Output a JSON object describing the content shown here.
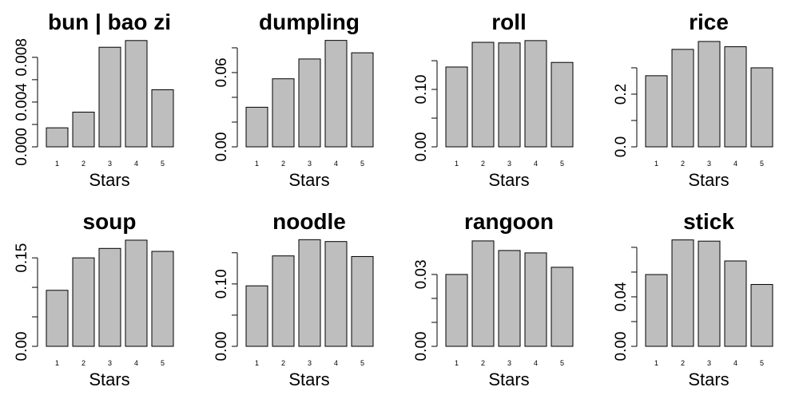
{
  "chart_data": [
    {
      "type": "bar",
      "title": "bun | bao zi",
      "xlabel": "Stars",
      "color": "#bebebe",
      "categories": [
        "1",
        "2",
        "3",
        "4",
        "5"
      ],
      "values": [
        0.0017,
        0.0031,
        0.0089,
        0.0095,
        0.0051
      ],
      "ylim": [
        0,
        0.0097
      ],
      "yticks": [
        {
          "value": 0,
          "label": "0.000"
        },
        {
          "value": 0.002,
          "label": null
        },
        {
          "value": 0.004,
          "label": "0.004"
        },
        {
          "value": 0.006,
          "label": null
        },
        {
          "value": 0.008,
          "label": "0.008"
        }
      ]
    },
    {
      "type": "bar",
      "title": "dumpling",
      "xlabel": "Stars",
      "color": "#bebebe",
      "categories": [
        "1",
        "2",
        "3",
        "4",
        "5"
      ],
      "values": [
        0.032,
        0.055,
        0.071,
        0.086,
        0.076
      ],
      "ylim": [
        0,
        0.0877
      ],
      "yticks": [
        {
          "value": 0,
          "label": "0.00"
        },
        {
          "value": 0.02,
          "label": null
        },
        {
          "value": 0.04,
          "label": null
        },
        {
          "value": 0.06,
          "label": "0.06"
        },
        {
          "value": 0.08,
          "label": null
        }
      ]
    },
    {
      "type": "bar",
      "title": "roll",
      "xlabel": "Stars",
      "color": "#bebebe",
      "categories": [
        "1",
        "2",
        "3",
        "4",
        "5"
      ],
      "values": [
        0.139,
        0.182,
        0.181,
        0.185,
        0.147
      ],
      "ylim": [
        0,
        0.189
      ],
      "yticks": [
        {
          "value": 0,
          "label": "0.00"
        },
        {
          "value": 0.05,
          "label": null
        },
        {
          "value": 0.1,
          "label": "0.10"
        },
        {
          "value": 0.15,
          "label": null
        }
      ]
    },
    {
      "type": "bar",
      "title": "rice",
      "xlabel": "Stars",
      "color": "#bebebe",
      "categories": [
        "1",
        "2",
        "3",
        "4",
        "5"
      ],
      "values": [
        0.27,
        0.37,
        0.4,
        0.38,
        0.3
      ],
      "ylim": [
        0,
        0.412
      ],
      "yticks": [
        {
          "value": 0,
          "label": "0.0"
        },
        {
          "value": 0.1,
          "label": null
        },
        {
          "value": 0.2,
          "label": "0.2"
        },
        {
          "value": 0.3,
          "label": null
        }
      ]
    },
    {
      "type": "bar",
      "title": "soup",
      "xlabel": "Stars",
      "color": "#bebebe",
      "categories": [
        "1",
        "2",
        "3",
        "4",
        "5"
      ],
      "values": [
        0.095,
        0.15,
        0.166,
        0.18,
        0.161
      ],
      "ylim": [
        0,
        0.184
      ],
      "yticks": [
        {
          "value": 0,
          "label": "0.00"
        },
        {
          "value": 0.05,
          "label": null
        },
        {
          "value": 0.1,
          "label": null
        },
        {
          "value": 0.15,
          "label": "0.15"
        }
      ]
    },
    {
      "type": "bar",
      "title": "noodle",
      "xlabel": "Stars",
      "color": "#bebebe",
      "categories": [
        "1",
        "2",
        "3",
        "4",
        "5"
      ],
      "values": [
        0.097,
        0.145,
        0.171,
        0.168,
        0.144
      ],
      "ylim": [
        0,
        0.174
      ],
      "yticks": [
        {
          "value": 0,
          "label": "0.00"
        },
        {
          "value": 0.05,
          "label": null
        },
        {
          "value": 0.1,
          "label": "0.10"
        },
        {
          "value": 0.15,
          "label": null
        }
      ]
    },
    {
      "type": "bar",
      "title": "rangoon",
      "xlabel": "Stars",
      "color": "#bebebe",
      "categories": [
        "1",
        "2",
        "3",
        "4",
        "5"
      ],
      "values": [
        0.03,
        0.044,
        0.04,
        0.039,
        0.033
      ],
      "ylim": [
        0,
        0.0453
      ],
      "yticks": [
        {
          "value": 0,
          "label": "0.00"
        },
        {
          "value": 0.01,
          "label": null
        },
        {
          "value": 0.02,
          "label": null
        },
        {
          "value": 0.03,
          "label": "0.03"
        }
      ]
    },
    {
      "type": "bar",
      "title": "stick",
      "xlabel": "Stars",
      "color": "#bebebe",
      "categories": [
        "1",
        "2",
        "3",
        "4",
        "5"
      ],
      "values": [
        0.058,
        0.086,
        0.085,
        0.069,
        0.05
      ],
      "ylim": [
        0,
        0.0877
      ],
      "yticks": [
        {
          "value": 0,
          "label": "0.00"
        },
        {
          "value": 0.02,
          "label": null
        },
        {
          "value": 0.04,
          "label": "0.04"
        },
        {
          "value": 0.06,
          "label": null
        },
        {
          "value": 0.08,
          "label": null
        }
      ]
    }
  ]
}
